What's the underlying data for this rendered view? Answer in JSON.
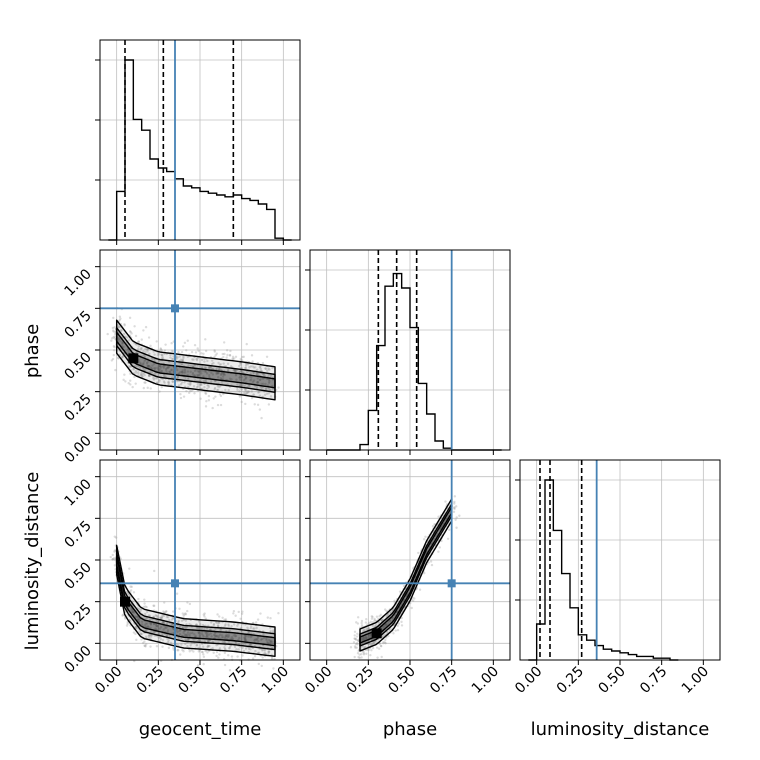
{
  "figure": {
    "parameters": [
      "geocent_time",
      "phase",
      "luminosity_distance"
    ],
    "axis_labels": {
      "geocent_time": "geocent_time",
      "phase": "phase",
      "luminosity_distance": "luminosity_distance"
    },
    "tick_labels": [
      "0.00",
      "0.25",
      "0.50",
      "0.75",
      "1.00"
    ],
    "colors": {
      "truth": "#4682b4",
      "hist": "#000000",
      "grid": "#c0c0c0",
      "points": "#9a9a9a",
      "density": "#000000"
    }
  },
  "chart_data": {
    "type": "corner",
    "parameters": [
      "geocent_time",
      "phase",
      "luminosity_distance"
    ],
    "truths": {
      "geocent_time": 0.35,
      "phase": 0.75,
      "luminosity_distance": 0.36
    },
    "axis_range": [
      -0.1,
      1.1
    ],
    "ticks": [
      0.0,
      0.25,
      0.5,
      0.75,
      1.0
    ],
    "grid": true,
    "histograms": [
      {
        "param": "geocent_time",
        "bin_edges": [
          -0.05,
          0.0,
          0.05,
          0.1,
          0.15,
          0.2,
          0.25,
          0.3,
          0.35,
          0.4,
          0.45,
          0.5,
          0.55,
          0.6,
          0.65,
          0.7,
          0.75,
          0.8,
          0.85,
          0.9,
          0.95,
          1.0,
          1.05
        ],
        "counts": [
          0.0,
          0.27,
          1.0,
          0.67,
          0.61,
          0.45,
          0.4,
          0.38,
          0.34,
          0.3,
          0.29,
          0.27,
          0.26,
          0.25,
          0.24,
          0.25,
          0.23,
          0.22,
          0.2,
          0.17,
          0.01,
          0.0
        ],
        "quantiles": [
          0.05,
          0.28,
          0.7
        ]
      },
      {
        "param": "phase",
        "bin_edges": [
          0.0,
          0.05,
          0.1,
          0.15,
          0.2,
          0.25,
          0.3,
          0.35,
          0.4,
          0.45,
          0.5,
          0.55,
          0.6,
          0.65,
          0.7,
          0.75,
          0.8,
          0.85,
          0.9,
          0.95,
          1.0,
          1.05
        ],
        "counts": [
          0.0,
          0.0,
          0.0,
          0.0,
          0.03,
          0.22,
          0.58,
          0.91,
          0.98,
          0.9,
          0.68,
          0.37,
          0.2,
          0.05,
          0.01,
          0.0,
          0.0,
          0.0,
          0.0,
          0.0,
          0.0
        ],
        "quantiles": [
          0.31,
          0.42,
          0.54
        ]
      },
      {
        "param": "luminosity_distance",
        "bin_edges": [
          -0.05,
          0.0,
          0.05,
          0.1,
          0.15,
          0.2,
          0.25,
          0.3,
          0.35,
          0.4,
          0.45,
          0.5,
          0.55,
          0.6,
          0.65,
          0.7,
          0.75,
          0.8,
          0.85
        ],
        "counts": [
          0.0,
          0.2,
          1.0,
          0.72,
          0.48,
          0.29,
          0.14,
          0.11,
          0.08,
          0.06,
          0.05,
          0.04,
          0.03,
          0.02,
          0.02,
          0.01,
          0.01,
          0.0
        ],
        "quantiles": [
          0.02,
          0.08,
          0.27
        ]
      }
    ],
    "density_panels": [
      {
        "x": "geocent_time",
        "y": "phase",
        "ridge": [
          [
            0.0,
            0.58
          ],
          [
            0.1,
            0.45
          ],
          [
            0.25,
            0.39
          ],
          [
            0.5,
            0.36
          ],
          [
            0.75,
            0.33
          ],
          [
            0.95,
            0.3
          ]
        ],
        "spread": 0.09
      },
      {
        "x": "geocent_time",
        "y": "luminosity_distance",
        "ridge": [
          [
            0.0,
            0.5
          ],
          [
            0.05,
            0.25
          ],
          [
            0.15,
            0.12
          ],
          [
            0.4,
            0.06
          ],
          [
            0.7,
            0.04
          ],
          [
            0.95,
            0.01
          ]
        ],
        "spread": 0.08
      },
      {
        "x": "phase",
        "y": "luminosity_distance",
        "ridge": [
          [
            0.2,
            0.02
          ],
          [
            0.3,
            0.06
          ],
          [
            0.4,
            0.15
          ],
          [
            0.5,
            0.32
          ],
          [
            0.6,
            0.55
          ],
          [
            0.75,
            0.8
          ]
        ],
        "spread": 0.06
      }
    ]
  }
}
